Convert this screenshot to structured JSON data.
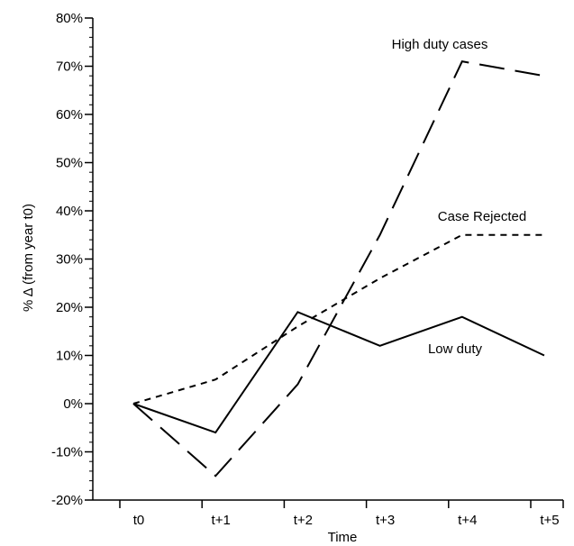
{
  "chart_data": {
    "type": "line",
    "xlabel": "Time",
    "ylabel": "% Δ (from year t0)",
    "categories": [
      "t0",
      "t+1",
      "t+2",
      "t+3",
      "t+4",
      "t+5"
    ],
    "ylim": [
      -20,
      80
    ],
    "yticks": [
      -20,
      -10,
      0,
      10,
      20,
      30,
      40,
      50,
      60,
      70,
      80
    ],
    "ytick_labels": [
      "-20%",
      "-10%",
      "0%",
      "10%",
      "20%",
      "30%",
      "40%",
      "50%",
      "60%",
      "70%",
      "80%"
    ],
    "grid": false,
    "legend": "none (series labeled inline)",
    "series": [
      {
        "name": "High duty cases",
        "style": "long-dash",
        "color": "#000000",
        "values": [
          0,
          -15,
          4,
          35,
          71,
          68
        ]
      },
      {
        "name": "Case Rejected",
        "style": "short-dash",
        "color": "#000000",
        "values": [
          0,
          5,
          16,
          26,
          35,
          35
        ]
      },
      {
        "name": "Low duty",
        "style": "solid",
        "color": "#000000",
        "values": [
          0,
          -6,
          19,
          12,
          18,
          10
        ]
      }
    ]
  }
}
